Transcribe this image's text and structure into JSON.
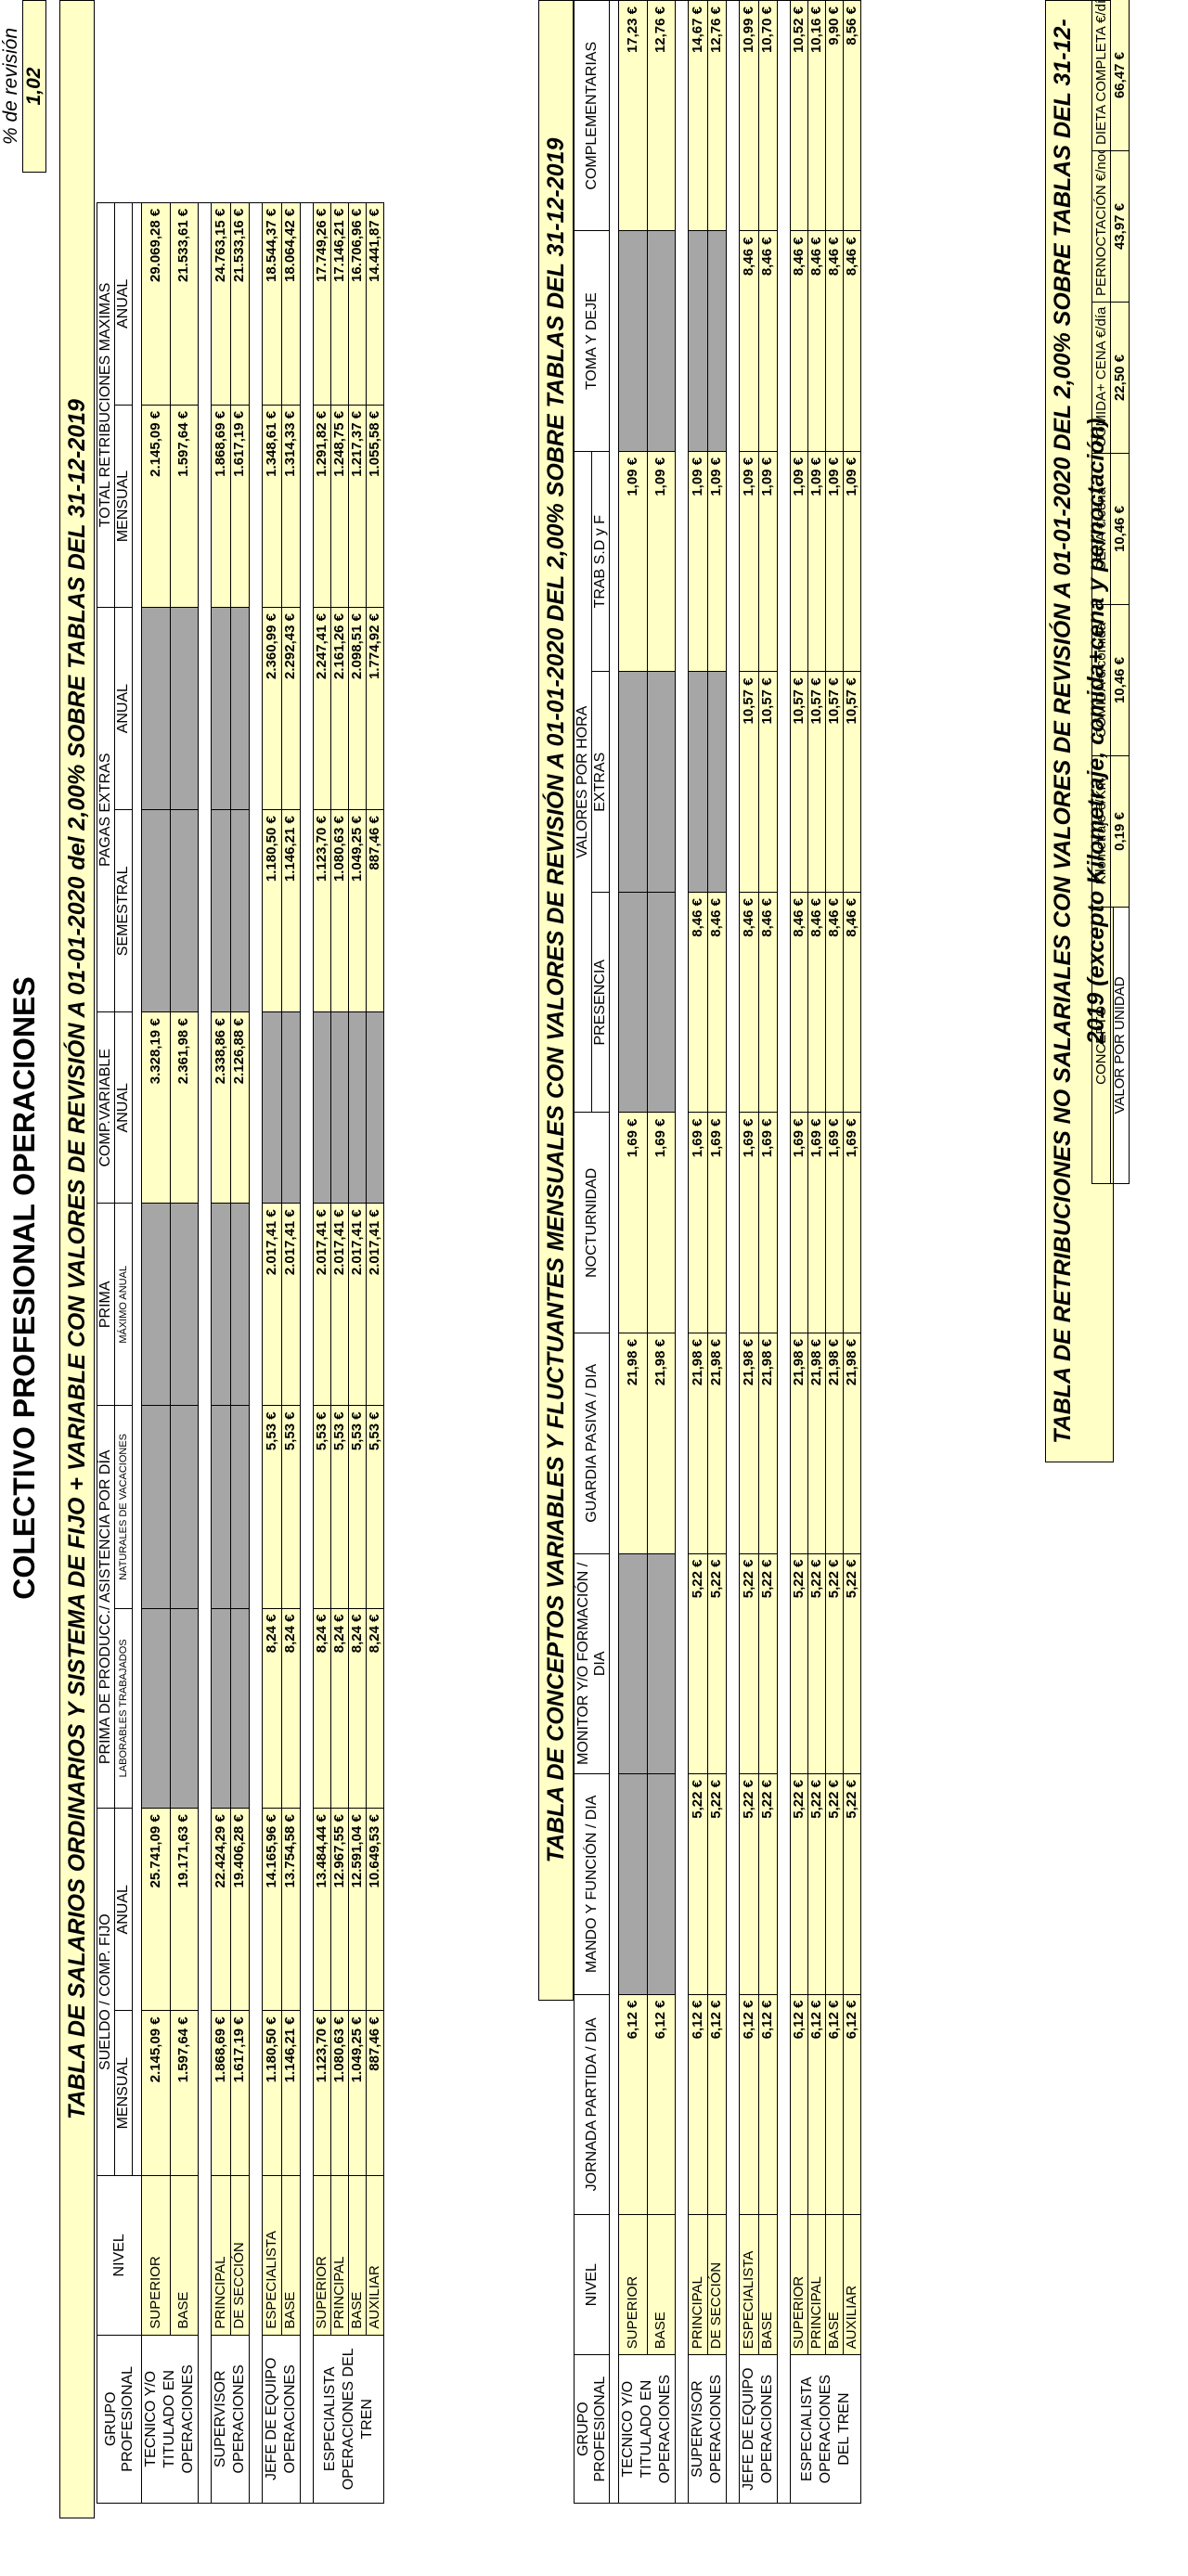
{
  "title": "COLECTIVO PROFESIONAL OPERACIONES",
  "revision": {
    "label": "% de revisión",
    "value": "1,02"
  },
  "table1": {
    "banner": "TABLA DE SALARIOS ORDINARIOS Y SISTEMA DE FIJO + VARIABLE CON VALORES DE REVISIÓN A 01-01-2020 del 2,00% SOBRE TABLAS DEL 31-12-2019",
    "headers": {
      "grupo": "GRUPO PROFESIONAL",
      "nivel": "NIVEL",
      "sueldo": "SUELDO / COMP. FIJO",
      "mensual": "MENSUAL",
      "anual": "ANUAL",
      "prima_prod": "PRIMA DE PRODUCC./ ASISTENCIA POR DÍA",
      "laborables": "LABORABLES TRABAJADOS",
      "naturales": "NATURALES DE VACACIONES",
      "prima": "PRIMA",
      "maximo_anual": "MÁXIMO ANUAL",
      "comp_variable": "COMP.VARIABLE",
      "pagas_extras": "PAGAS EXTRAS",
      "semestral": "SEMESTRAL",
      "total_retrib": "TOTAL RETRIBUCIONES MAXIMAS"
    },
    "groups": [
      {
        "name": "TECNICO Y/O TITULADO EN OPERACIONES",
        "rows": [
          {
            "nivel": "SUPERIOR",
            "v": [
              "2.145,09 €",
              "25.741,09 €",
              "",
              "",
              "",
              "3.328,19 €",
              "",
              "",
              "2.145,09 €",
              "29.069,28 €"
            ]
          },
          {
            "nivel": "BASE",
            "v": [
              "1.597,64 €",
              "19.171,63 €",
              "",
              "",
              "",
              "2.361,98 €",
              "",
              "",
              "1.597,64 €",
              "21.533,61 €"
            ]
          }
        ]
      },
      {
        "name": "SUPERVISOR OPERACIONES",
        "rows": [
          {
            "nivel": "PRINCIPAL",
            "v": [
              "1.868,69 €",
              "22.424,29 €",
              "",
              "",
              "",
              "2.338,86 €",
              "",
              "",
              "1.868,69 €",
              "24.763,15 €"
            ]
          },
          {
            "nivel": "DE SECCIÓN",
            "v": [
              "1.617,19 €",
              "19.406,28 €",
              "",
              "",
              "",
              "2.126,88 €",
              "",
              "",
              "1.617,19 €",
              "21.533,16 €"
            ]
          }
        ]
      },
      {
        "name": "JEFE DE EQUIPO OPERACIONES",
        "rows": [
          {
            "nivel": "ESPECIALISTA",
            "v": [
              "1.180,50 €",
              "14.165,96 €",
              "8,24 €",
              "5,53 €",
              "2.017,41 €",
              "",
              "1.180,50 €",
              "2.360,99 €",
              "1.348,61 €",
              "18.544,37 €"
            ]
          },
          {
            "nivel": "BASE",
            "v": [
              "1.146,21 €",
              "13.754,58 €",
              "8,24 €",
              "5,53 €",
              "2.017,41 €",
              "",
              "1.146,21 €",
              "2.292,43 €",
              "1.314,33 €",
              "18.064,42 €"
            ]
          }
        ]
      },
      {
        "name": "ESPECIALISTA OPERACIONES DEL TREN",
        "rows": [
          {
            "nivel": "SUPERIOR",
            "v": [
              "1.123,70 €",
              "13.484,44 €",
              "8,24 €",
              "5,53 €",
              "2.017,41 €",
              "",
              "1.123,70 €",
              "2.247,41 €",
              "1.291,82 €",
              "17.749,26 €"
            ]
          },
          {
            "nivel": "PRINCIPAL",
            "v": [
              "1.080,63 €",
              "12.967,55 €",
              "8,24 €",
              "5,53 €",
              "2.017,41 €",
              "",
              "1.080,63 €",
              "2.161,26 €",
              "1.248,75 €",
              "17.146,21 €"
            ]
          },
          {
            "nivel": "BASE",
            "v": [
              "1.049,25 €",
              "12.591,04 €",
              "8,24 €",
              "5,53 €",
              "2.017,41 €",
              "",
              "1.049,25 €",
              "2.098,51 €",
              "1.217,37 €",
              "16.706,96 €"
            ]
          },
          {
            "nivel": "AUXILIAR",
            "v": [
              "887,46 €",
              "10.649,53 €",
              "8,24 €",
              "5,53 €",
              "2.017,41 €",
              "",
              "887,46 €",
              "1.774,92 €",
              "1.055,58 €",
              "14.441,87 €"
            ]
          }
        ]
      }
    ]
  },
  "table2": {
    "banner": "TABLA DE CONCEPTOS VARIABLES Y FLUCTUANTES MENSUALES CON VALORES DE REVISIÓN A 01-01-2020 DEL 2,00%  SOBRE TABLAS DEL 31-12-2019",
    "headers": {
      "grupo": "GRUPO PROFESIONAL",
      "nivel": "NIVEL",
      "jornada": "JORNADA PARTIDA / DIA",
      "mando": "MANDO Y FUNCIÓN / DIA",
      "monitor": "MONITOR Y/O FORMACIÓN / DIA",
      "guardia": "GUARDIA PASIVA   / DIA",
      "nocturnidad": "NOCTURNIDAD",
      "valores_hora": "VALORES POR HORA",
      "presencia": "PRESENCIA",
      "extras": "EXTRAS",
      "trab": "TRAB S.D y F",
      "toma": "TOMA Y DEJE",
      "complementarias": "COMPLEMENTARIAS"
    },
    "groups": [
      {
        "name": "TECNICO Y/O TITULADO EN OPERACIONES",
        "rows": [
          {
            "nivel": "SUPERIOR",
            "v": [
              "6,12 €",
              "",
              "",
              "21,98 €",
              "1,69 €",
              "",
              "",
              "1,09 €",
              "",
              "17,23 €"
            ]
          },
          {
            "nivel": "BASE",
            "v": [
              "6,12 €",
              "",
              "",
              "21,98 €",
              "1,69 €",
              "",
              "",
              "1,09 €",
              "",
              "12,76 €"
            ]
          }
        ]
      },
      {
        "name": "SUPERVISOR OPERACIONES",
        "rows": [
          {
            "nivel": "PRINCIPAL",
            "v": [
              "6,12 €",
              "5,22 €",
              "5,22 €",
              "21,98 €",
              "1,69 €",
              "8,46 €",
              "",
              "1,09 €",
              "",
              "14,67 €"
            ]
          },
          {
            "nivel": "DE SECCIÓN",
            "v": [
              "6,12 €",
              "5,22 €",
              "5,22 €",
              "21,98 €",
              "1,69 €",
              "8,46 €",
              "",
              "1,09 €",
              "",
              "12,76 €"
            ]
          }
        ]
      },
      {
        "name": "JEFE DE EQUIPO OPERACIONES",
        "rows": [
          {
            "nivel": "ESPECIALISTA",
            "v": [
              "6,12 €",
              "5,22 €",
              "5,22 €",
              "21,98 €",
              "1,69 €",
              "8,46 €",
              "10,57 €",
              "1,09 €",
              "8,46 €",
              "10,99 €"
            ]
          },
          {
            "nivel": "BASE",
            "v": [
              "6,12 €",
              "5,22 €",
              "5,22 €",
              "21,98 €",
              "1,69 €",
              "8,46 €",
              "10,57 €",
              "1,09 €",
              "8,46 €",
              "10,70 €"
            ]
          }
        ]
      },
      {
        "name": "ESPECIALISTA OPERACIONES DEL TREN",
        "rows": [
          {
            "nivel": "SUPERIOR",
            "v": [
              "6,12 €",
              "5,22 €",
              "5,22 €",
              "21,98 €",
              "1,69 €",
              "8,46 €",
              "10,57 €",
              "1,09 €",
              "8,46 €",
              "10,52 €"
            ]
          },
          {
            "nivel": "PRINCIPAL",
            "v": [
              "6,12 €",
              "5,22 €",
              "5,22 €",
              "21,98 €",
              "1,69 €",
              "8,46 €",
              "10,57 €",
              "1,09 €",
              "8,46 €",
              "10,16 €"
            ]
          },
          {
            "nivel": "BASE",
            "v": [
              "6,12 €",
              "5,22 €",
              "5,22 €",
              "21,98 €",
              "1,69 €",
              "8,46 €",
              "10,57 €",
              "1,09 €",
              "8,46 €",
              "9,90 €"
            ]
          },
          {
            "nivel": "AUXILIAR",
            "v": [
              "6,12 €",
              "5,22 €",
              "5,22 €",
              "21,98 €",
              "1,69 €",
              "8,46 €",
              "10,57 €",
              "1,09 €",
              "8,46 €",
              "8,56 €"
            ]
          }
        ]
      }
    ]
  },
  "table3": {
    "banner": "TABLA DE RETRIBUCIONES NO SALARIALES CON VALORES DE REVISIÓN A 01-01-2020 DEL 2,00%  SOBRE TABLAS DEL 31-12-2019 (excepto Kilometraje, comida+cena y pernoctación)",
    "concepto_label": "CONCEPTO",
    "valor_label": "VALOR POR UNIDAD",
    "cols": [
      {
        "name": "Kilometraje €/Km",
        "value": "0,19 €"
      },
      {
        "name": "COMIDA €/comida",
        "value": "10,46 €"
      },
      {
        "name": "CENA  €/cena",
        "value": "10,46 €"
      },
      {
        "name": "COMIDA+ CENA €/día",
        "value": "22,50 €"
      },
      {
        "name": "PERNOCTACIÓN €/noche",
        "value": "43,97 €"
      },
      {
        "name": "DIETA COMPLETA €/día",
        "value": "66,47 €"
      }
    ]
  }
}
